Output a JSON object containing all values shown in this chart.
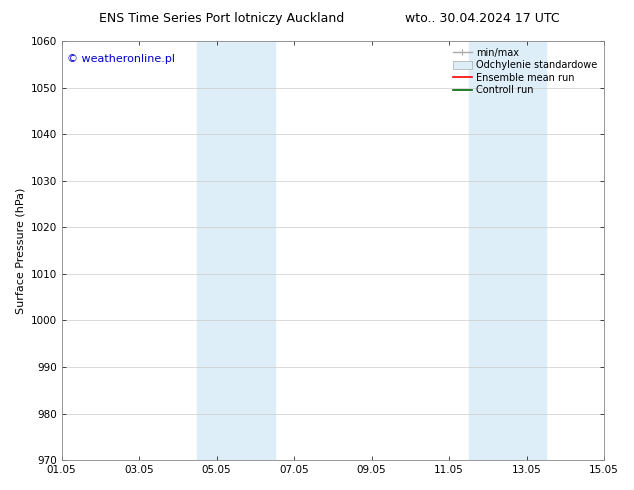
{
  "title_left": "ENS Time Series Port lotniczy Auckland",
  "title_right": "wto.. 30.04.2024 17 UTC",
  "ylabel": "Surface Pressure (hPa)",
  "ylim": [
    970,
    1060
  ],
  "yticks": [
    970,
    980,
    990,
    1000,
    1010,
    1020,
    1030,
    1040,
    1050,
    1060
  ],
  "xlim_start": 0,
  "xlim_end": 14,
  "xtick_labels": [
    "01.05",
    "03.05",
    "05.05",
    "07.05",
    "09.05",
    "11.05",
    "13.05",
    "15.05"
  ],
  "xtick_positions": [
    0,
    2,
    4,
    6,
    8,
    10,
    12,
    14
  ],
  "shaded_regions": [
    {
      "xmin": 3.5,
      "xmax": 5.5,
      "color": "#ddeef8"
    },
    {
      "xmin": 10.5,
      "xmax": 12.5,
      "color": "#ddeef8"
    }
  ],
  "watermark_text": "© weatheronline.pl",
  "watermark_color": "#0000cc",
  "background_color": "#ffffff",
  "grid_color": "#cccccc",
  "legend_entries": [
    {
      "label": "min/max",
      "color": "#aaaaaa",
      "lw": 1.0
    },
    {
      "label": "Odchylenie standardowe",
      "facecolor": "#ddeef8",
      "edgecolor": "#aaaaaa"
    },
    {
      "label": "Ensemble mean run",
      "color": "#ff0000",
      "lw": 1.2
    },
    {
      "label": "Controll run",
      "color": "#006600",
      "lw": 1.2
    }
  ],
  "title_fontsize": 9,
  "axis_label_fontsize": 8,
  "tick_fontsize": 7.5,
  "legend_fontsize": 7,
  "watermark_fontsize": 8
}
